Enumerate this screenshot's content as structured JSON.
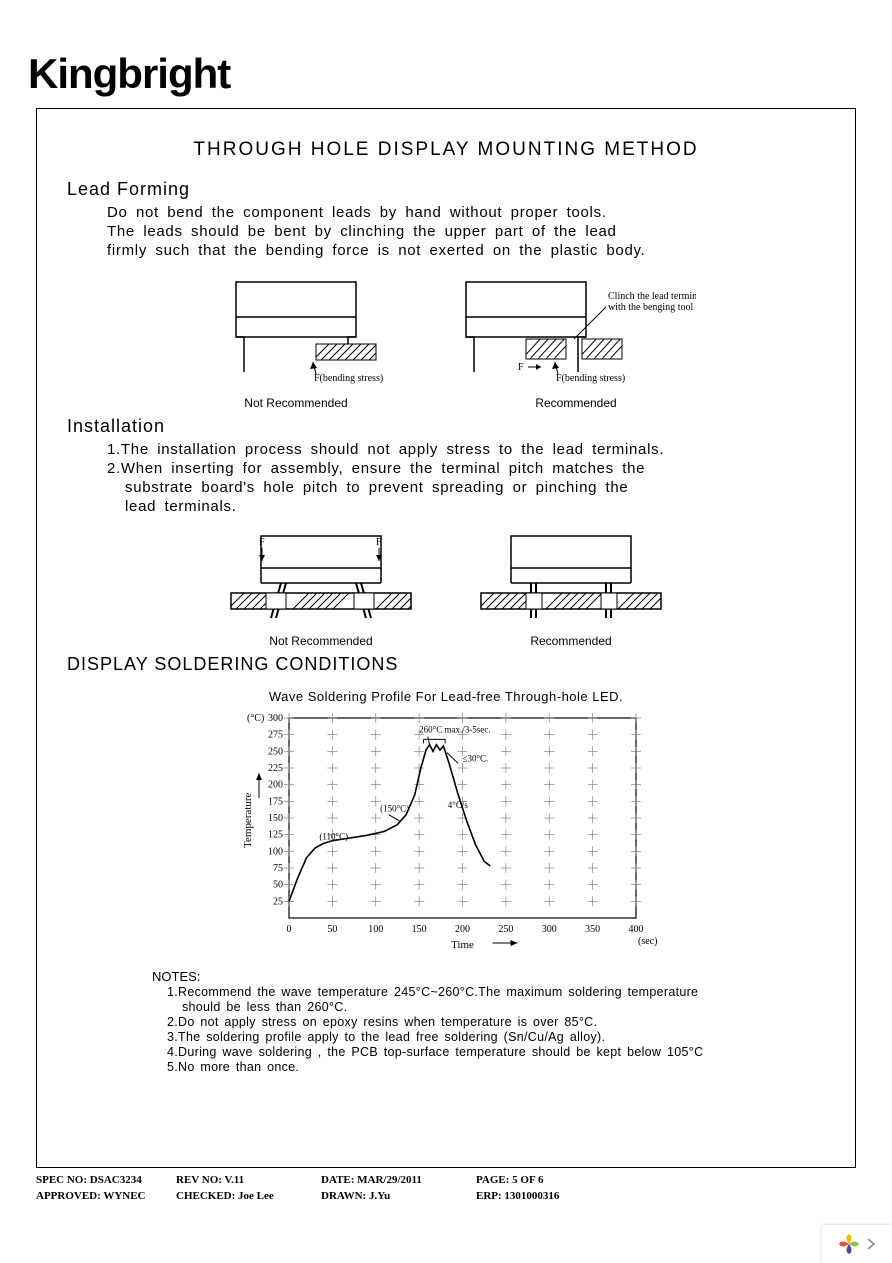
{
  "logo": "Kingbright",
  "title": "THROUGH HOLE DISPLAY MOUNTING METHOD",
  "lead_forming": {
    "heading": "Lead Forming",
    "p1": "Do not bend the component leads by hand without proper tools.",
    "p2": "The leads should be bent by clinching the upper part of the lead",
    "p3": "firmly such that the bending force is not exerted on the plastic body.",
    "fig1": {
      "not_rec": "Not Recommended",
      "rec": "Recommended",
      "stress_label": "F(bending stress)",
      "f_label": "F",
      "clinch_label1": "Clinch the lead terminal",
      "clinch_label2": "with the benging tool"
    }
  },
  "installation": {
    "heading": "Installation",
    "l1": "1.The installation process should not apply stress to the lead terminals.",
    "l2": "2.When inserting for assembly, ensure the terminal pitch matches the",
    "l3": "substrate board's  hole pitch to prevent spreading or pinching the",
    "l4": "lead terminals.",
    "fig2": {
      "not_rec": "Not Recommended",
      "rec": "Recommended",
      "f": "F"
    }
  },
  "soldering": {
    "heading": "DISPLAY SOLDERING CONDITIONS",
    "chart_title": "Wave Soldering Profile For Lead-free Through-hole LED.",
    "chart": {
      "type": "line",
      "x_label": "Time",
      "x_unit": "(sec)",
      "y_label": "Temperature",
      "y_unit": "(°C)",
      "xlim": [
        0,
        400
      ],
      "ylim": [
        0,
        300
      ],
      "x_ticks": [
        0,
        50,
        100,
        150,
        200,
        250,
        300,
        350,
        400
      ],
      "y_ticks": [
        25,
        50,
        75,
        100,
        125,
        150,
        175,
        200,
        225,
        250,
        275,
        300
      ],
      "grid_color": "#808080",
      "curve_color": "#000000",
      "annotations": {
        "a110": "(110°C)",
        "a150": "(150°C)",
        "a4cs": "4°C/s",
        "a260": "260°C max./3-5sec.",
        "a30": "≤30°C."
      },
      "curve_points": [
        [
          0,
          25
        ],
        [
          10,
          60
        ],
        [
          20,
          90
        ],
        [
          30,
          105
        ],
        [
          40,
          112
        ],
        [
          50,
          116
        ],
        [
          70,
          120
        ],
        [
          90,
          124
        ],
        [
          110,
          130
        ],
        [
          125,
          140
        ],
        [
          135,
          155
        ],
        [
          145,
          185
        ],
        [
          152,
          225
        ],
        [
          158,
          252
        ],
        [
          162,
          260
        ],
        [
          166,
          250
        ],
        [
          170,
          260
        ],
        [
          174,
          252
        ],
        [
          178,
          258
        ],
        [
          185,
          230
        ],
        [
          195,
          185
        ],
        [
          205,
          145
        ],
        [
          215,
          110
        ],
        [
          225,
          85
        ],
        [
          232,
          78
        ]
      ]
    },
    "notes_h": "NOTES:",
    "notes": [
      "1.Recommend the wave temperature 245°C~260°C.The maximum soldering temperature",
      "should be less than 260°C.",
      "2.Do not apply stress on epoxy resins when temperature is over 85°C.",
      "3.The soldering profile apply to the lead free soldering (Sn/Cu/Ag alloy).",
      "4.During wave soldering , the PCB top-surface temperature should be kept below 105°C",
      "5.No more than once."
    ]
  },
  "footer": {
    "spec": "SPEC NO: DSAC3234",
    "rev": "REV NO: V.11",
    "date": "DATE: MAR/29/2011",
    "page": "PAGE: 5 OF 6",
    "approved": "APPROVED: WYNEC",
    "checked": "CHECKED: Joe Lee",
    "drawn": "DRAWN: J.Yu",
    "erp": "ERP: 1301000316"
  }
}
